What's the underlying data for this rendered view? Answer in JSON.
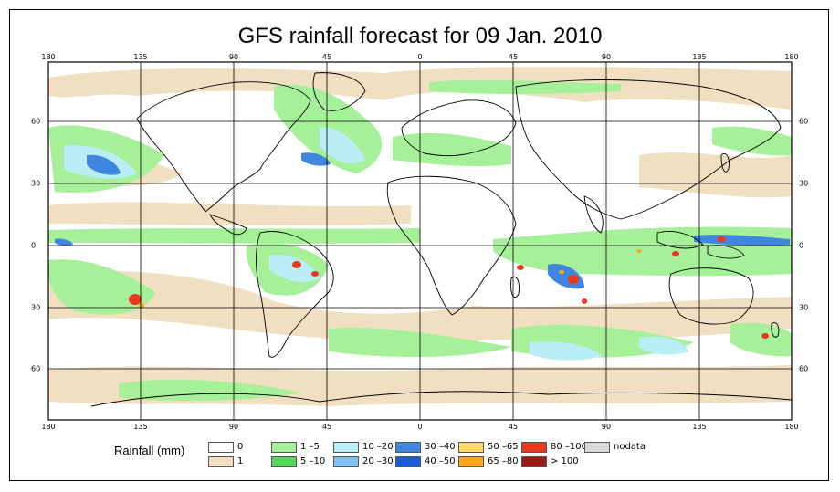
{
  "title": "GFS rainfall forecast for 09 Jan. 2010",
  "x_ticks": [
    "180",
    "135",
    "90",
    "45",
    "0",
    "45",
    "90",
    "135",
    "180"
  ],
  "y_ticks": [
    "60",
    "30",
    "0",
    "30",
    "60"
  ],
  "legend": {
    "title": "Rainfall (mm)",
    "items": [
      {
        "label": "0",
        "color": "#ffffff"
      },
      {
        "label": "1",
        "color": "#f1dfc1"
      },
      {
        "label": "1 –5",
        "color": "#a6f09a"
      },
      {
        "label": "5 –10",
        "color": "#56d65a"
      },
      {
        "label": "10 –20",
        "color": "#b9eef6"
      },
      {
        "label": "20 –30",
        "color": "#7fc1f2"
      },
      {
        "label": "30 –40",
        "color": "#3f86e0"
      },
      {
        "label": "40 –50",
        "color": "#1c5cd6"
      },
      {
        "label": "50 –65",
        "color": "#ffd96b"
      },
      {
        "label": "65 –80",
        "color": "#ffa51e"
      },
      {
        "label": "80 –100",
        "color": "#e8391f"
      },
      {
        "label": "> 100",
        "color": "#9a1a15"
      },
      {
        "label": "nodata",
        "color": "#d9d9d9"
      }
    ]
  }
}
